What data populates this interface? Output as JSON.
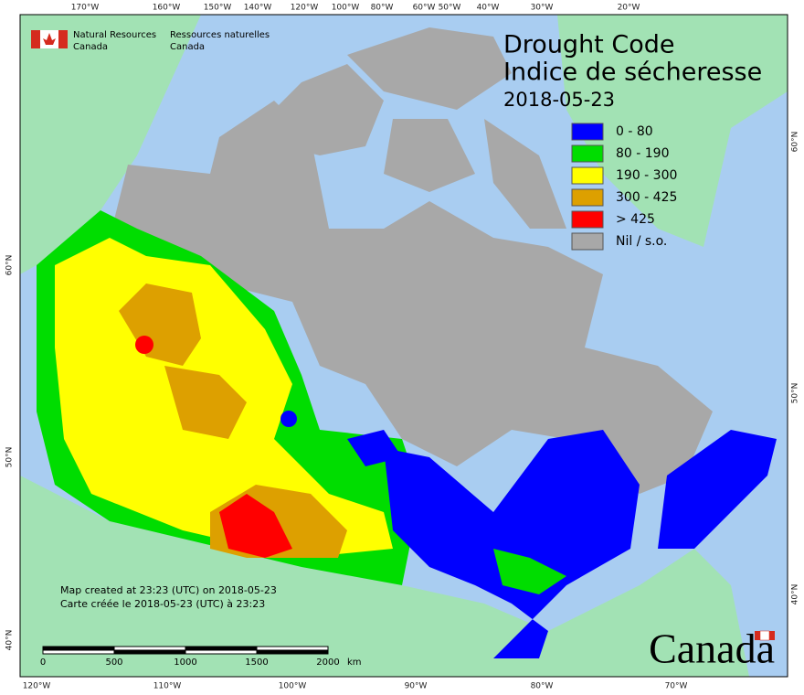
{
  "header": {
    "agency_en": "Natural Resources",
    "country_en": "Canada",
    "agency_fr": "Ressources naturelles",
    "country_fr": "Canada"
  },
  "title": {
    "line1": "Drought Code",
    "line2": "Indice de sécheresse",
    "date": "2018-05-23"
  },
  "legend": [
    {
      "label": "0 - 80",
      "color": "#0000ff"
    },
    {
      "label": "80 - 190",
      "color": "#00dd00"
    },
    {
      "label": "190 - 300",
      "color": "#ffff00"
    },
    {
      "label": "300 - 425",
      "color": "#dda000"
    },
    {
      "label": "> 425",
      "color": "#ff0000"
    },
    {
      "label": "Nil / s.o.",
      "color": "#a8a8a8"
    }
  ],
  "top_labels": [
    "170°W",
    "160°W",
    "150°W",
    "140°W",
    "120°W",
    "100°W",
    "80°W",
    "60°W",
    "50°W",
    "40°W",
    "30°W",
    "20°W"
  ],
  "bottom_labels": [
    "120°W",
    "110°W",
    "100°W",
    "90°W",
    "80°W",
    "70°W"
  ],
  "left_labels": [
    "60°N",
    "50°N",
    "40°N"
  ],
  "right_labels": [
    "60°N",
    "50°N",
    "40°N"
  ],
  "credits": [
    "Map created at 23:23 (UTC) on 2018-05-23",
    "Carte créée le 2018-05-23 (UTC) à 23:23"
  ],
  "scale_bar": {
    "ticks": [
      "0",
      "500",
      "1000",
      "1500",
      "2000"
    ],
    "unit": "km"
  },
  "wordmark": "Canada"
}
